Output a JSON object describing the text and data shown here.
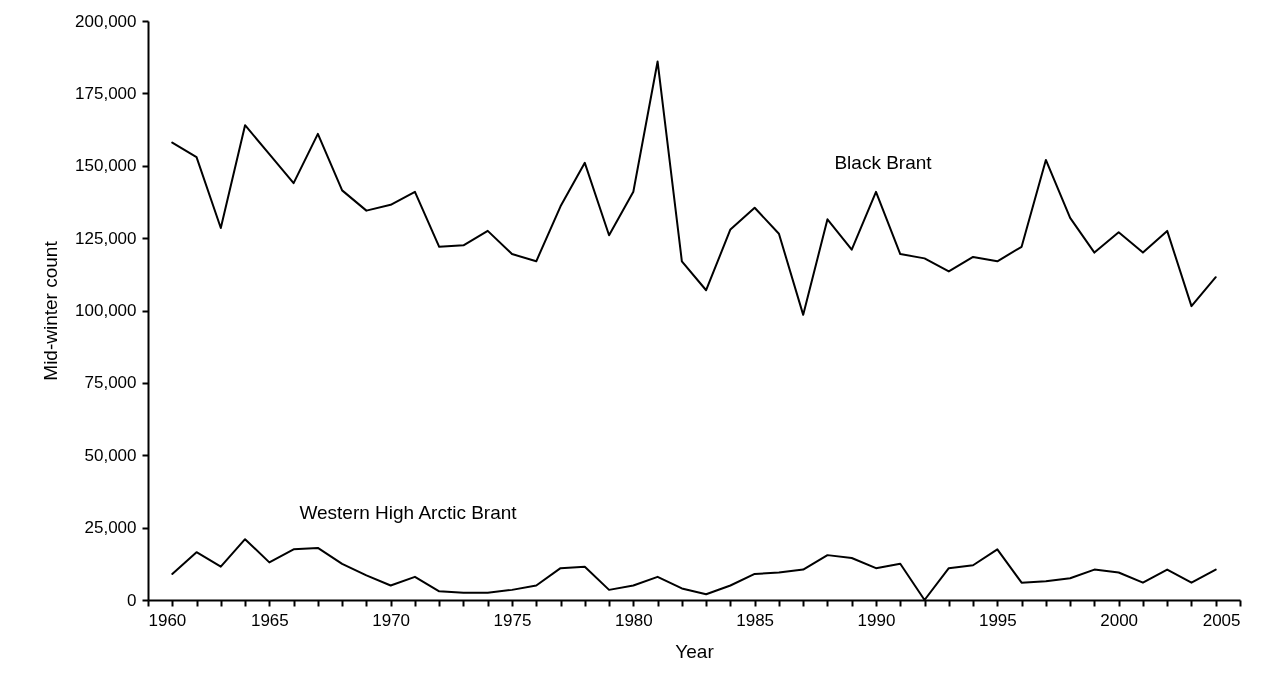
{
  "chart_data": {
    "type": "line",
    "xlabel": "Year",
    "ylabel": "Mid-winter count",
    "x": [
      1961,
      1962,
      1963,
      1964,
      1965,
      1966,
      1967,
      1968,
      1969,
      1970,
      1971,
      1972,
      1973,
      1974,
      1975,
      1976,
      1977,
      1978,
      1979,
      1980,
      1981,
      1982,
      1983,
      1984,
      1985,
      1986,
      1987,
      1988,
      1989,
      1990,
      1991,
      1992,
      1993,
      1994,
      1995,
      1996,
      1997,
      1998,
      1999,
      2000,
      2001,
      2002,
      2003,
      2004
    ],
    "series": [
      {
        "name": "Black Brant",
        "color": "#000000",
        "values": [
          158000,
          153000,
          128500,
          164000,
          154000,
          144000,
          161000,
          141500,
          134500,
          136500,
          141000,
          122000,
          122500,
          127500,
          119500,
          117000,
          136000,
          151000,
          126000,
          141000,
          186000,
          117000,
          107000,
          128000,
          135500,
          126500,
          98500,
          131500,
          121000,
          141000,
          119500,
          118000,
          113500,
          118500,
          117000,
          122000,
          152000,
          132000,
          120000,
          127000,
          120000,
          127500,
          101500,
          111500
        ]
      },
      {
        "name": "Western High Arctic Brant",
        "color": "#000000",
        "values": [
          9000,
          16500,
          11500,
          21000,
          13000,
          17500,
          18000,
          12500,
          8500,
          5000,
          8000,
          3000,
          2500,
          2500,
          3500,
          5000,
          11000,
          11500,
          3500,
          5000,
          8000,
          4000,
          2000,
          5000,
          9000,
          9500,
          10500,
          15500,
          14500,
          11000,
          12500,
          0,
          11000,
          12000,
          17500,
          6000,
          6500,
          7500,
          10500,
          9500,
          6000,
          10500,
          6000,
          10500
        ]
      }
    ],
    "xlim": [
      1960,
      2005
    ],
    "xticks": [
      1960,
      {
        "value": 1961,
        "label": null
      },
      {
        "value": 1962,
        "label": null
      },
      {
        "value": 1963,
        "label": null
      },
      {
        "value": 1964,
        "label": null
      },
      1965,
      {
        "value": 1966,
        "label": null
      },
      {
        "value": 1967,
        "label": null
      },
      {
        "value": 1968,
        "label": null
      },
      {
        "value": 1969,
        "label": null
      },
      1970,
      {
        "value": 1971,
        "label": null
      },
      {
        "value": 1972,
        "label": null
      },
      {
        "value": 1973,
        "label": null
      },
      {
        "value": 1974,
        "label": null
      },
      1975,
      {
        "value": 1976,
        "label": null
      },
      {
        "value": 1977,
        "label": null
      },
      {
        "value": 1978,
        "label": null
      },
      {
        "value": 1979,
        "label": null
      },
      1980,
      {
        "value": 1981,
        "label": null
      },
      {
        "value": 1982,
        "label": null
      },
      {
        "value": 1983,
        "label": null
      },
      {
        "value": 1984,
        "label": null
      },
      1985,
      {
        "value": 1986,
        "label": null
      },
      {
        "value": 1987,
        "label": null
      },
      {
        "value": 1988,
        "label": null
      },
      {
        "value": 1989,
        "label": null
      },
      1990,
      {
        "value": 1991,
        "label": null
      },
      {
        "value": 1992,
        "label": null
      },
      {
        "value": 1993,
        "label": null
      },
      {
        "value": 1994,
        "label": null
      },
      1995,
      {
        "value": 1996,
        "label": null
      },
      {
        "value": 1997,
        "label": null
      },
      {
        "value": 1998,
        "label": null
      },
      {
        "value": 1999,
        "label": null
      },
      2000,
      {
        "value": 2001,
        "label": null
      },
      {
        "value": 2002,
        "label": null
      },
      {
        "value": 2003,
        "label": null
      },
      {
        "value": 2004,
        "label": null
      },
      2005
    ],
    "ylim": [
      0,
      200000
    ],
    "yticks": [
      0,
      {
        "value": 25000,
        "label": "25,000"
      },
      {
        "value": 50000,
        "label": "50,000"
      },
      {
        "value": 75000,
        "label": "75,000"
      },
      {
        "value": 100000,
        "label": "100,000"
      },
      {
        "value": 125000,
        "label": "125,000"
      },
      {
        "value": 150000,
        "label": "150,000"
      },
      {
        "value": 175000,
        "label": "175,000"
      },
      {
        "value": 200000,
        "label": "200,000"
      }
    ],
    "grid": false,
    "legend": false,
    "marker": "none",
    "line_style": "solid"
  }
}
